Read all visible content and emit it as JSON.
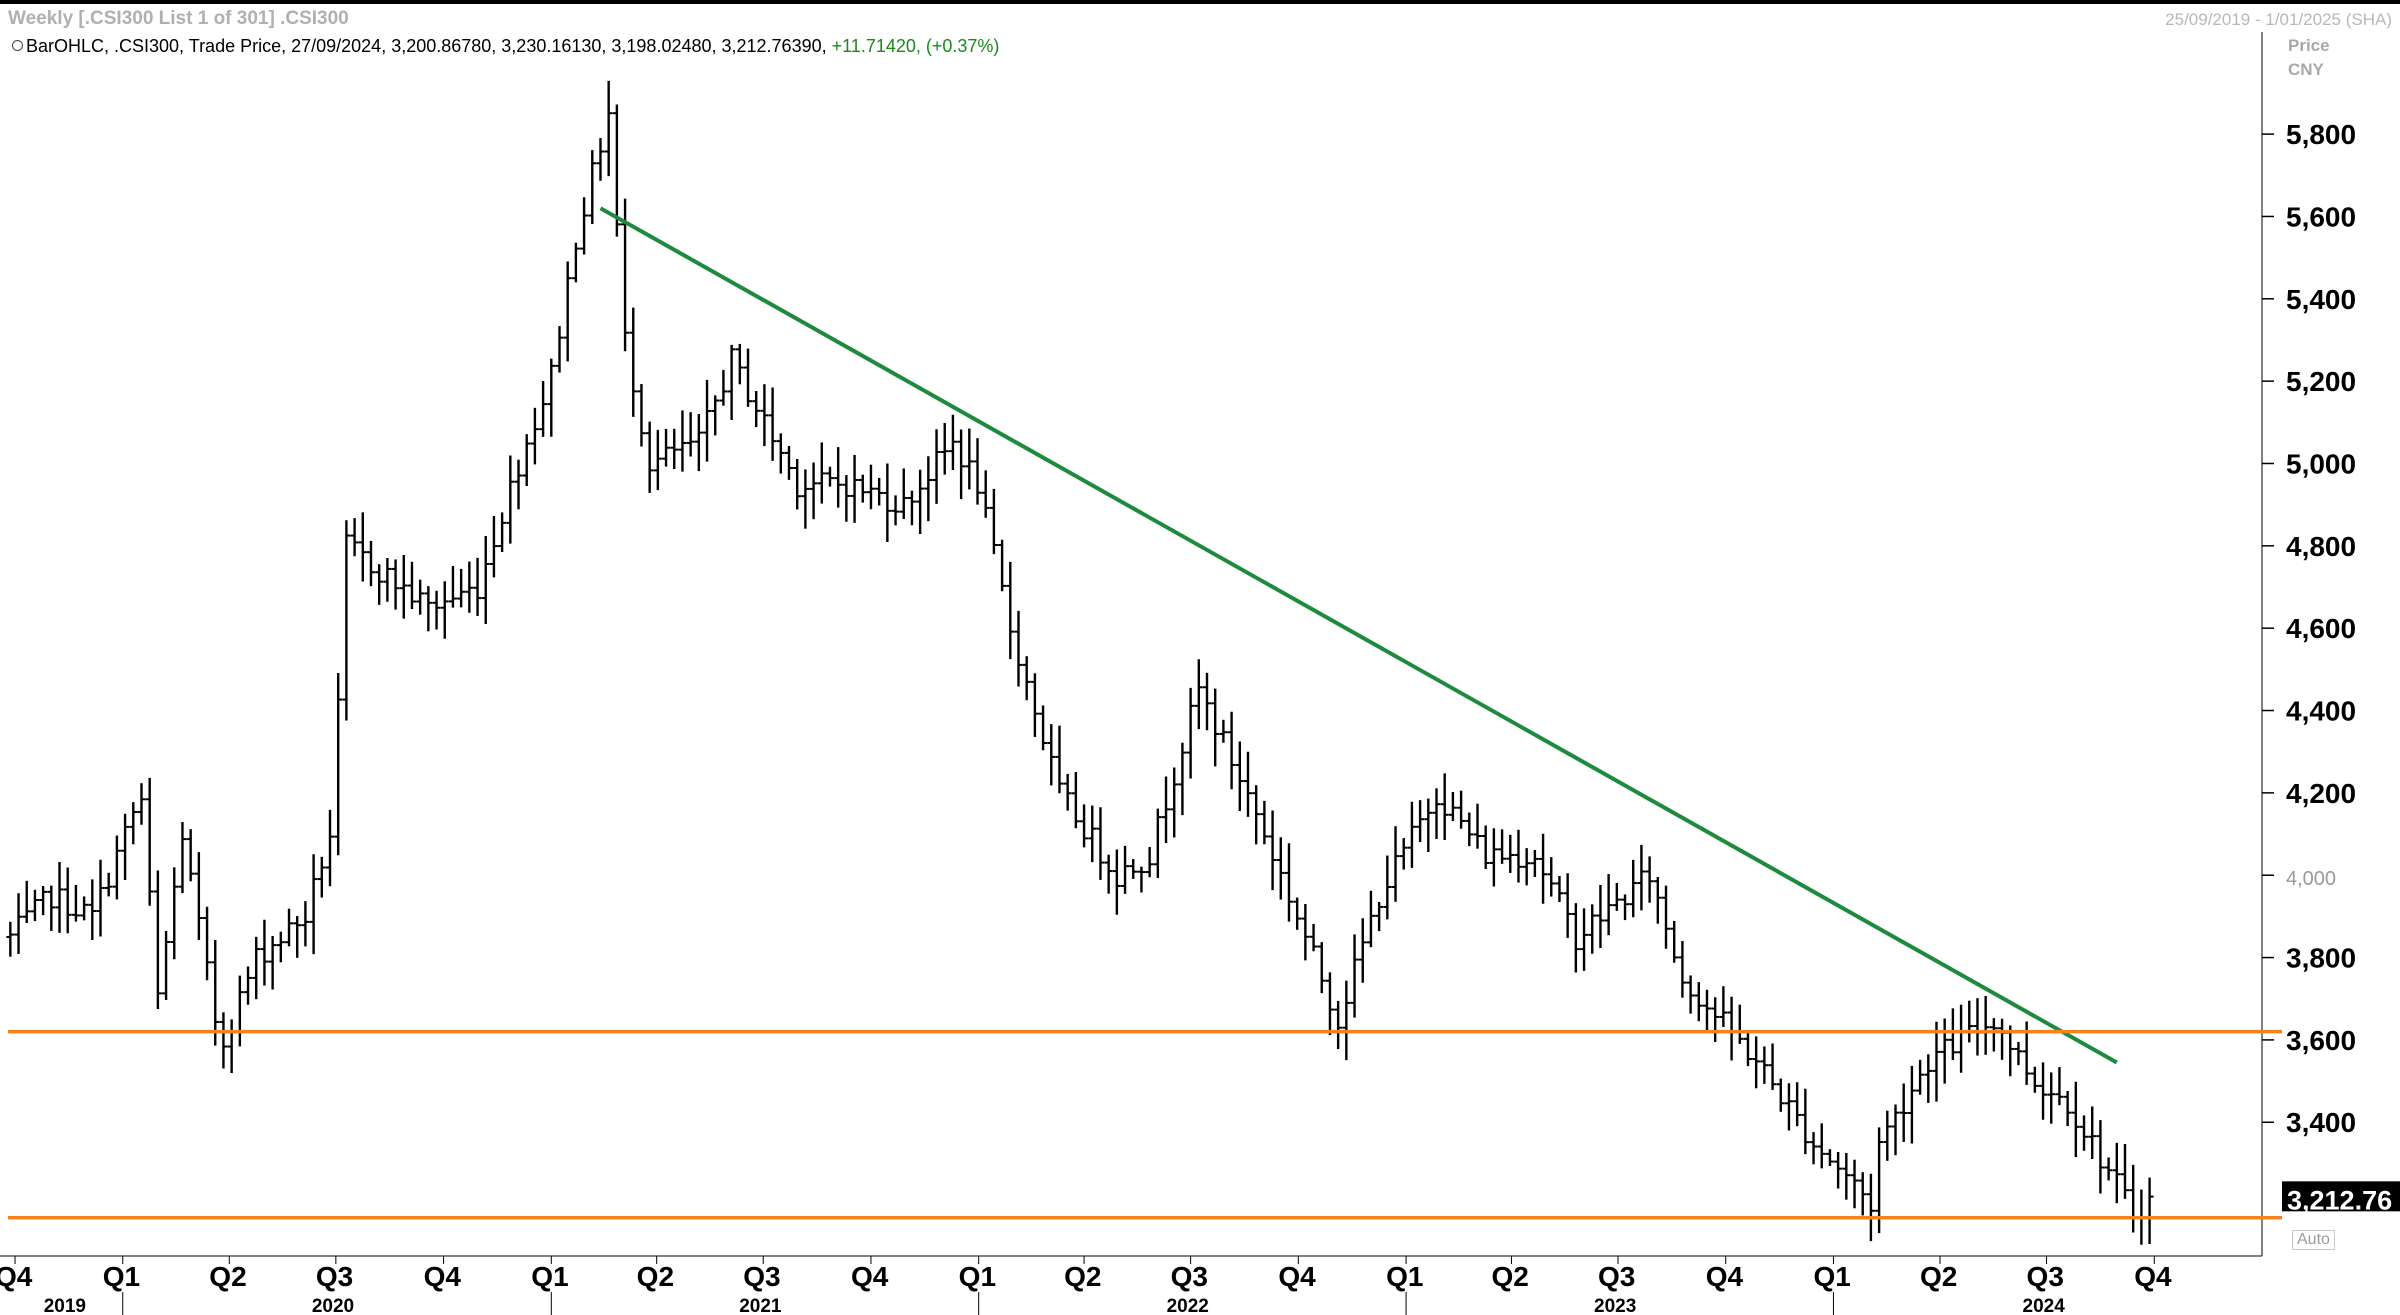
{
  "window": {
    "title": "Weekly [.CSI300 List 1 of 301] .CSI300",
    "date_range": "25/09/2019 - 1/01/2025 (SHA)"
  },
  "legend": {
    "prefix": "BarOHLC, .CSI300, Trade Price, 27/09/2024, 3,200.86780, 3,230.16130, 3,198.02480, 3,212.76390,",
    "change": "+11.71420, (+0.37%)"
  },
  "axis": {
    "price_label": "Price",
    "currency_label": "CNY",
    "auto_label": "Auto",
    "last_price_label": "3,212.76"
  },
  "colors": {
    "bars": "#000000",
    "trendline": "#1e8a3c",
    "support": "#f5821f",
    "last_price_box": "#000000",
    "change_positive": "#1a8a1a"
  },
  "chart_data": {
    "type": "ohlc-bar",
    "title": "Weekly [.CSI300 List 1 of 301] .CSI300",
    "ylabel": "Price CNY",
    "ylim": [
      3080,
      5980
    ],
    "y_ticks": [
      {
        "value": 3400,
        "label": "3,400"
      },
      {
        "value": 3600,
        "label": "3,600"
      },
      {
        "value": 3800,
        "label": "3,800"
      },
      {
        "value": 4000,
        "label": "4,000",
        "minor": true
      },
      {
        "value": 4200,
        "label": "4,200"
      },
      {
        "value": 4400,
        "label": "4,400"
      },
      {
        "value": 4600,
        "label": "4,600"
      },
      {
        "value": 4800,
        "label": "4,800"
      },
      {
        "value": 5000,
        "label": "5,000"
      },
      {
        "value": 5200,
        "label": "5,200"
      },
      {
        "value": 5400,
        "label": "5,400"
      },
      {
        "value": 5600,
        "label": "5,600"
      },
      {
        "value": 5800,
        "label": "5,800"
      }
    ],
    "x_quarters": [
      {
        "date": "2019-10-01",
        "label": "Q4"
      },
      {
        "date": "2020-01-01",
        "label": "Q1"
      },
      {
        "date": "2020-04-01",
        "label": "Q2"
      },
      {
        "date": "2020-07-01",
        "label": "Q3"
      },
      {
        "date": "2020-10-01",
        "label": "Q4"
      },
      {
        "date": "2021-01-01",
        "label": "Q1"
      },
      {
        "date": "2021-04-01",
        "label": "Q2"
      },
      {
        "date": "2021-07-01",
        "label": "Q3"
      },
      {
        "date": "2021-10-01",
        "label": "Q4"
      },
      {
        "date": "2022-01-01",
        "label": "Q1"
      },
      {
        "date": "2022-04-01",
        "label": "Q2"
      },
      {
        "date": "2022-07-01",
        "label": "Q3"
      },
      {
        "date": "2022-10-01",
        "label": "Q4"
      },
      {
        "date": "2023-01-01",
        "label": "Q1"
      },
      {
        "date": "2023-04-01",
        "label": "Q2"
      },
      {
        "date": "2023-07-01",
        "label": "Q3"
      },
      {
        "date": "2023-10-01",
        "label": "Q4"
      },
      {
        "date": "2024-01-01",
        "label": "Q1"
      },
      {
        "date": "2024-04-01",
        "label": "Q2"
      },
      {
        "date": "2024-07-01",
        "label": "Q3"
      },
      {
        "date": "2024-10-01",
        "label": "Q4"
      }
    ],
    "x_years": [
      {
        "date": "2019-11-15",
        "label": "2019"
      },
      {
        "date": "2020-07-01",
        "label": "2020"
      },
      {
        "date": "2021-07-01",
        "label": "2021"
      },
      {
        "date": "2022-07-01",
        "label": "2022"
      },
      {
        "date": "2023-07-01",
        "label": "2023"
      },
      {
        "date": "2024-07-01",
        "label": "2024"
      }
    ],
    "year_dividers": [
      "2020-01-01",
      "2021-01-01",
      "2022-01-01",
      "2023-01-01",
      "2024-01-01"
    ],
    "x_range": [
      "2019-09-25",
      "2025-01-01"
    ],
    "keypoints": [
      {
        "date": "2019-09-27",
        "close": 3850
      },
      {
        "date": "2019-11-01",
        "close": 3950
      },
      {
        "date": "2019-12-06",
        "close": 3900
      },
      {
        "date": "2020-01-10",
        "close": 4150
      },
      {
        "date": "2020-01-17",
        "close": 4180
      },
      {
        "date": "2020-01-31",
        "close": 3700
      },
      {
        "date": "2020-02-21",
        "close": 4100
      },
      {
        "date": "2020-03-20",
        "close": 3650
      },
      {
        "date": "2020-03-27",
        "close": 3600
      },
      {
        "date": "2020-04-24",
        "close": 3800
      },
      {
        "date": "2020-06-05",
        "close": 3900
      },
      {
        "date": "2020-06-26",
        "close": 4100
      },
      {
        "date": "2020-07-03",
        "close": 4400
      },
      {
        "date": "2020-07-10",
        "close": 4800
      },
      {
        "date": "2020-09-18",
        "close": 4650
      },
      {
        "date": "2020-10-30",
        "close": 4700
      },
      {
        "date": "2020-12-04",
        "close": 5000
      },
      {
        "date": "2020-12-31",
        "close": 5200
      },
      {
        "date": "2021-01-22",
        "close": 5550
      },
      {
        "date": "2021-02-19",
        "close": 5850
      },
      {
        "date": "2021-03-05",
        "close": 5300
      },
      {
        "date": "2021-03-26",
        "close": 5000
      },
      {
        "date": "2021-05-07",
        "close": 5050
      },
      {
        "date": "2021-06-04",
        "close": 5250
      },
      {
        "date": "2021-07-30",
        "close": 4950
      },
      {
        "date": "2021-09-10",
        "close": 4950
      },
      {
        "date": "2021-10-29",
        "close": 4900
      },
      {
        "date": "2021-12-10",
        "close": 5050
      },
      {
        "date": "2021-12-31",
        "close": 4950
      },
      {
        "date": "2022-01-28",
        "close": 4600
      },
      {
        "date": "2022-03-11",
        "close": 4200
      },
      {
        "date": "2022-04-29",
        "close": 4000
      },
      {
        "date": "2022-05-27",
        "close": 4050
      },
      {
        "date": "2022-07-08",
        "close": 4450
      },
      {
        "date": "2022-08-26",
        "close": 4150
      },
      {
        "date": "2022-10-28",
        "close": 3700
      },
      {
        "date": "2022-11-04",
        "close": 3650
      },
      {
        "date": "2022-12-09",
        "close": 3950
      },
      {
        "date": "2023-01-27",
        "close": 4200
      },
      {
        "date": "2023-03-10",
        "close": 4050
      },
      {
        "date": "2023-04-21",
        "close": 4050
      },
      {
        "date": "2023-05-26",
        "close": 3850
      },
      {
        "date": "2023-07-28",
        "close": 4000
      },
      {
        "date": "2023-08-25",
        "close": 3750
      },
      {
        "date": "2023-10-27",
        "close": 3550
      },
      {
        "date": "2023-12-15",
        "close": 3350
      },
      {
        "date": "2024-01-19",
        "close": 3250
      },
      {
        "date": "2024-02-02",
        "close": 3200
      },
      {
        "date": "2024-02-09",
        "close": 3350
      },
      {
        "date": "2024-03-22",
        "close": 3550
      },
      {
        "date": "2024-05-17",
        "close": 3650
      },
      {
        "date": "2024-06-21",
        "close": 3500
      },
      {
        "date": "2024-07-19",
        "close": 3450
      },
      {
        "date": "2024-09-13",
        "close": 3180
      },
      {
        "date": "2024-09-27",
        "close": 3212.76
      }
    ],
    "trendline": {
      "from": {
        "date": "2021-02-12",
        "price": 5620
      },
      "to": {
        "date": "2024-08-30",
        "price": 3545
      }
    },
    "support_lines": [
      3620,
      3168
    ],
    "last_price": 3212.76,
    "legend_position": "top-left"
  }
}
